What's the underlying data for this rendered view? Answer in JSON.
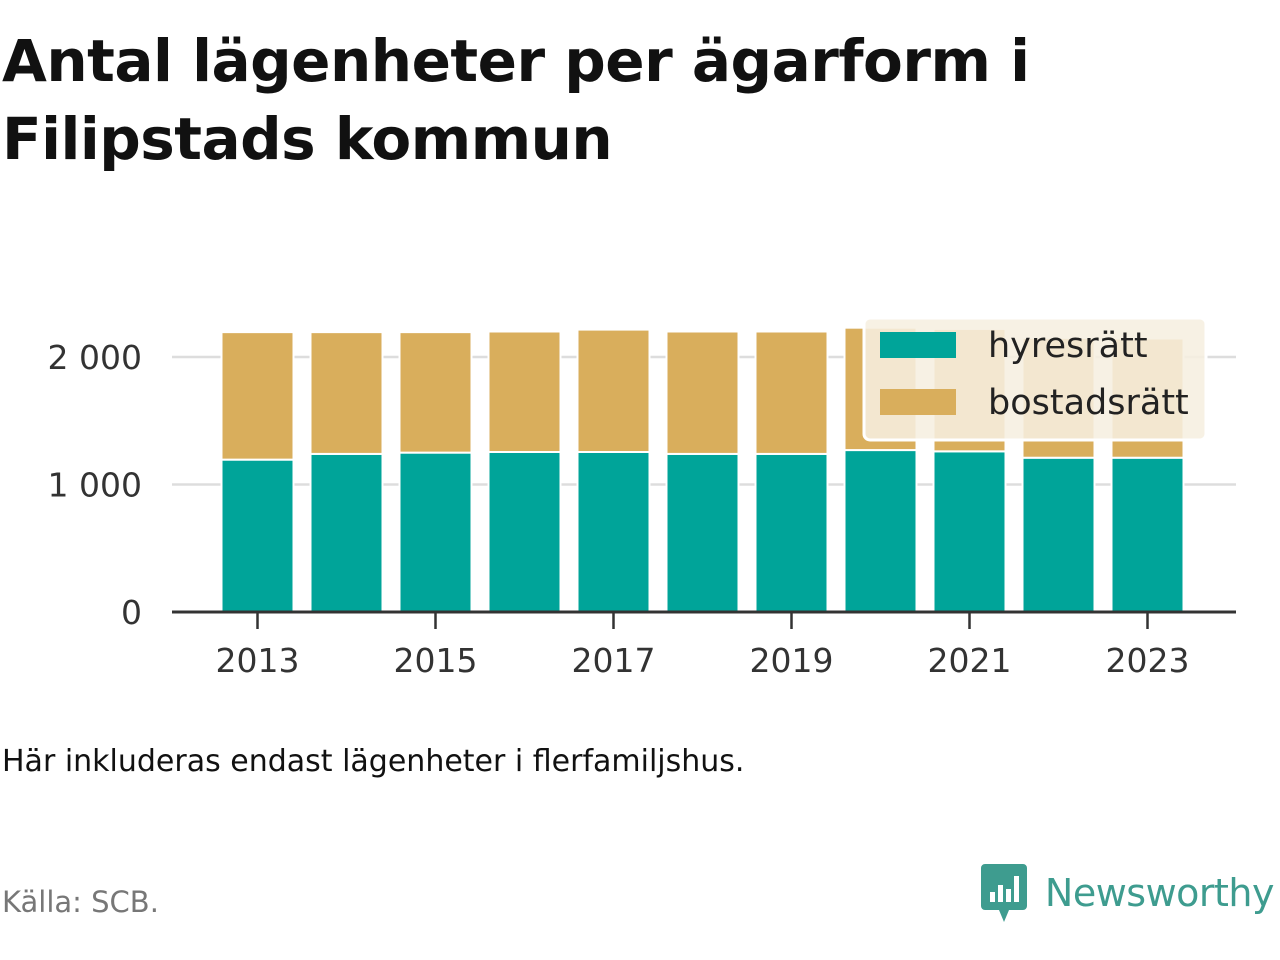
{
  "title": "Antal lägenheter per ägarform i Filipstads kommun",
  "subtitle": "Här inkluderas endast lägenheter i flerfamiljshus.",
  "source": "Källa: SCB.",
  "brand": "Newsworthy",
  "colors": {
    "hyresratt": "#00a499",
    "bostadsratt": "#d9ae5c",
    "brand": "#3e9c8f",
    "legend_background": "#f6efe0"
  },
  "chart_data": {
    "type": "bar",
    "stacked": true,
    "categories": [
      "2013",
      "2014",
      "2015",
      "2016",
      "2017",
      "2018",
      "2019",
      "2020",
      "2021",
      "2022",
      "2023"
    ],
    "x_tick_labels": [
      "2013",
      "2015",
      "2017",
      "2019",
      "2021",
      "2023"
    ],
    "y_tick_values": [
      0,
      1000,
      2000
    ],
    "y_tick_labels": [
      "0",
      "1 000",
      "2 000"
    ],
    "ylim": [
      0,
      2250
    ],
    "grid": true,
    "legend_position": "top-right",
    "series": [
      {
        "name": "hyresrätt",
        "color": "#00a499",
        "values": [
          1195,
          1240,
          1250,
          1255,
          1255,
          1240,
          1240,
          1270,
          1260,
          1210,
          1210
        ]
      },
      {
        "name": "bostadsrätt",
        "color": "#d9ae5c",
        "values": [
          1000,
          955,
          945,
          945,
          960,
          960,
          960,
          960,
          960,
          940,
          935
        ]
      }
    ]
  }
}
